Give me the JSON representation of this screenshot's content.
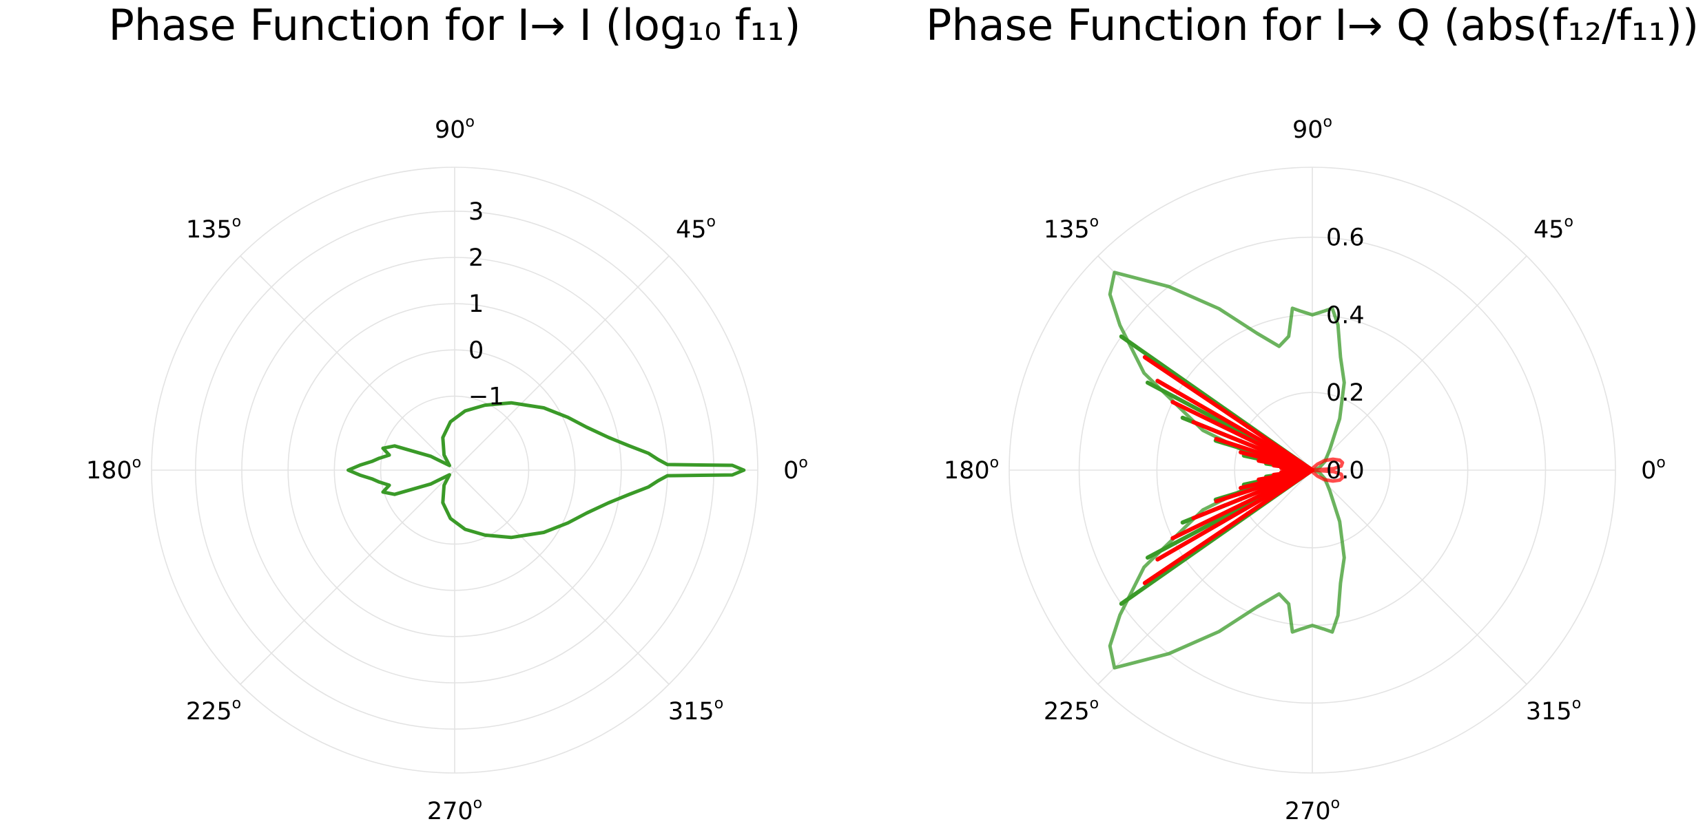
{
  "chart_data": [
    {
      "type": "polar-line",
      "title": "Phase Function for I→ I (log₁₀ f₁₁)",
      "angle_ticks_deg": [
        0,
        45,
        90,
        135,
        180,
        225,
        270,
        315
      ],
      "angle_tick_labels": [
        "0",
        "45",
        "90",
        "135",
        "180",
        "225",
        "270",
        "315"
      ],
      "degree_symbol": "o",
      "radial_ticks": [
        -1,
        0,
        1,
        2,
        3
      ],
      "radial_tick_labels": [
        "−1",
        "0",
        "1",
        "2",
        "3"
      ],
      "rlim": [
        -2.6,
        3.95
      ],
      "grid": true,
      "series": [
        {
          "color": "#3a9a28",
          "points": [
            [
              0,
              3.65
            ],
            [
              1,
              3.4
            ],
            [
              1.5,
              2.0
            ],
            [
              3,
              1.8
            ],
            [
              5,
              1.6
            ],
            [
              8,
              1.2
            ],
            [
              12,
              0.8
            ],
            [
              18,
              0.4
            ],
            [
              25,
              0.1
            ],
            [
              35,
              -0.25
            ],
            [
              50,
              -0.7
            ],
            [
              65,
              -1.05
            ],
            [
              80,
              -1.3
            ],
            [
              95,
              -1.55
            ],
            [
              110,
              -1.85
            ],
            [
              125,
              -2.2
            ],
            [
              138,
              -2.45
            ],
            [
              150,
              -2.0
            ],
            [
              158,
              -1.2
            ],
            [
              163,
              -0.98
            ],
            [
              167,
              -1.15
            ],
            [
              171,
              -0.95
            ],
            [
              174,
              -0.8
            ],
            [
              177,
              -0.55
            ],
            [
              180,
              -0.3
            ]
          ],
          "mirror": true
        }
      ]
    },
    {
      "type": "polar-line",
      "title": "Phase Function for I→ Q (abs(f₁₂/f₁₁))",
      "angle_ticks_deg": [
        0,
        45,
        90,
        135,
        180,
        225,
        270,
        315
      ],
      "angle_tick_labels": [
        "0",
        "45",
        "90",
        "135",
        "180",
        "225",
        "270",
        "315"
      ],
      "degree_symbol": "o",
      "radial_ticks": [
        0.0,
        0.2,
        0.4,
        0.6
      ],
      "radial_tick_labels": [
        "0.0",
        "0.2",
        "0.4",
        "0.6"
      ],
      "rlim": [
        0,
        0.78
      ],
      "grid": true,
      "series": [
        {
          "color": "#3a9a28",
          "opacity": 0.75,
          "points": [
            [
              0,
              0.0
            ],
            [
              8,
              0.005
            ],
            [
              20,
              0.02
            ],
            [
              35,
              0.04
            ],
            [
              50,
              0.07
            ],
            [
              62,
              0.15
            ],
            [
              70,
              0.24
            ],
            [
              76,
              0.3
            ],
            [
              80,
              0.38
            ],
            [
              83,
              0.42
            ],
            [
              86,
              0.41
            ],
            [
              90,
              0.4
            ],
            [
              94,
              0.41
            ],
            [
              97,
              0.42
            ],
            [
              100,
              0.35
            ],
            [
              105,
              0.33
            ],
            [
              112,
              0.38
            ],
            [
              120,
              0.48
            ],
            [
              128,
              0.6
            ],
            [
              135,
              0.72
            ],
            [
              139,
              0.69
            ],
            [
              143,
              0.62
            ],
            [
              150,
              0.5
            ],
            [
              160,
              0.3
            ],
            [
              170,
              0.12
            ],
            [
              180,
              0.0
            ]
          ],
          "mirror": true
        },
        {
          "color": "#3a9a28",
          "opacity": 1.0,
          "spikes_deg": [
            [
              145,
              0.6
            ],
            [
              152,
              0.48
            ],
            [
              158,
              0.36
            ],
            [
              163,
              0.26
            ],
            [
              168,
              0.18
            ],
            [
              172,
              0.12
            ],
            [
              176,
              0.07
            ],
            [
              180,
              0.05
            ]
          ],
          "mirror": true
        },
        {
          "color": "#ff0000",
          "opacity": 0.7,
          "points": [
            [
              0,
              0.0
            ],
            [
              4,
              0.055
            ],
            [
              8,
              0.075
            ],
            [
              14,
              0.08
            ],
            [
              20,
              0.075
            ],
            [
              28,
              0.06
            ],
            [
              38,
              0.04
            ],
            [
              50,
              0.02
            ],
            [
              65,
              0.008
            ],
            [
              90,
              0.002
            ],
            [
              180,
              0.0
            ]
          ],
          "mirror": true
        },
        {
          "color": "#ff0000",
          "opacity": 1.0,
          "spikes_deg": [
            [
              146,
              0.52
            ],
            [
              150,
              0.46
            ],
            [
              154,
              0.4
            ],
            [
              158,
              0.33
            ],
            [
              162,
              0.26
            ],
            [
              166,
              0.19
            ],
            [
              170,
              0.14
            ],
            [
              173,
              0.1
            ],
            [
              176,
              0.08
            ],
            [
              178,
              0.05
            ],
            [
              180,
              0.07
            ]
          ],
          "mirror": true
        }
      ]
    }
  ]
}
